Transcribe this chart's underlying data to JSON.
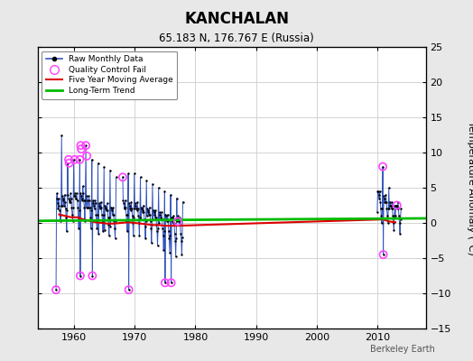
{
  "title": "KANCHALAN",
  "subtitle": "65.183 N, 176.767 E (Russia)",
  "right_ylabel": "Temperature Anomaly (°C)",
  "credit": "Berkeley Earth",
  "xlim": [
    1954,
    2018
  ],
  "ylim": [
    -15,
    25
  ],
  "yticks": [
    -15,
    -10,
    -5,
    0,
    5,
    10,
    15,
    20,
    25
  ],
  "xticks": [
    1960,
    1970,
    1980,
    1990,
    2000,
    2010
  ],
  "fig_bg": "#e8e8e8",
  "plot_bg": "#ffffff",
  "raw_color": "#3355bb",
  "dot_color": "#000000",
  "qc_color": "#ff44ff",
  "ma_color": "#dd0000",
  "trend_color": "#00bb00",
  "raw_data": {
    "seg1": {
      "x": [
        1957.0,
        1957.08,
        1957.17,
        1957.25,
        1957.33,
        1957.42,
        1957.5,
        1957.58,
        1957.67,
        1957.75,
        1957.83,
        1957.92,
        1958.0,
        1958.08,
        1958.17,
        1958.25,
        1958.33,
        1958.42,
        1958.5,
        1958.58,
        1958.67,
        1958.75,
        1958.83,
        1958.92,
        1959.0,
        1959.08,
        1959.17,
        1959.25,
        1959.33,
        1959.42,
        1959.5,
        1959.58,
        1959.67,
        1959.75,
        1959.83,
        1959.92,
        1960.0,
        1960.08,
        1960.17,
        1960.25,
        1960.33,
        1960.42,
        1960.5,
        1960.58,
        1960.67,
        1960.75,
        1960.83,
        1960.92,
        1961.0,
        1961.08,
        1961.17,
        1961.25,
        1961.33,
        1961.42,
        1961.5,
        1961.58,
        1961.67,
        1961.75,
        1961.83,
        1961.92,
        1962.0,
        1962.08,
        1962.17,
        1962.25,
        1962.33,
        1962.42,
        1962.5,
        1962.58,
        1962.67,
        1962.75,
        1962.83,
        1962.92,
        1963.0,
        1963.08,
        1963.17,
        1963.25,
        1963.33,
        1963.42,
        1963.5,
        1963.58,
        1963.67,
        1963.75,
        1963.83,
        1963.92,
        1964.0,
        1964.08,
        1964.17,
        1964.25,
        1964.33,
        1964.42,
        1964.5,
        1964.58,
        1964.67,
        1964.75,
        1964.83,
        1964.92,
        1965.0,
        1965.08,
        1965.17,
        1965.25,
        1965.33,
        1965.42,
        1965.5,
        1965.58,
        1965.67,
        1965.75,
        1965.83,
        1965.92,
        1966.0,
        1966.08,
        1966.17,
        1966.25,
        1966.33,
        1966.42,
        1966.5,
        1966.58,
        1966.67,
        1966.75,
        1966.83,
        1966.92
      ],
      "y": [
        -9.5,
        3.5,
        4.2,
        2.8,
        2.0,
        3.5,
        2.5,
        1.8,
        1.2,
        0.3,
        2.5,
        12.5,
        2.5,
        3.8,
        3.5,
        3.2,
        2.5,
        4.0,
        3.0,
        2.0,
        0.8,
        -1.2,
        1.8,
        8.5,
        4.0,
        3.5,
        3.2,
        3.0,
        3.0,
        4.2,
        3.5,
        2.2,
        1.2,
        0.2,
        2.2,
        9.0,
        3.8,
        4.2,
        3.8,
        3.5,
        3.5,
        4.2,
        3.2,
        2.2,
        0.8,
        -0.8,
        1.8,
        9.0,
        -7.5,
        4.2,
        3.8,
        3.5,
        3.2,
        5.2,
        4.2,
        3.2,
        2.2,
        0.2,
        3.2,
        11.0,
        2.2,
        3.8,
        3.2,
        2.2,
        2.2,
        3.8,
        3.2,
        2.2,
        0.8,
        -0.8,
        1.8,
        9.0,
        -7.5,
        3.2,
        2.8,
        2.5,
        2.0,
        3.2,
        2.8,
        1.2,
        0.2,
        -0.8,
        1.2,
        8.5,
        -1.5,
        2.8,
        2.5,
        2.2,
        2.0,
        3.0,
        2.2,
        1.2,
        0.2,
        -1.2,
        1.2,
        8.0,
        -1.0,
        2.5,
        2.2,
        2.0,
        1.8,
        2.8,
        1.8,
        0.8,
        -0.2,
        -1.8,
        0.8,
        7.5,
        -0.5,
        2.2,
        2.0,
        1.8,
        1.2,
        2.2,
        1.2,
        0.2,
        -0.8,
        -2.2,
        0.2,
        6.5
      ]
    },
    "seg2": {
      "x": [
        1968.0,
        1968.08,
        1968.17,
        1968.25,
        1968.33,
        1968.42,
        1968.5,
        1968.58,
        1968.67,
        1968.75,
        1968.83,
        1968.92,
        1969.0,
        1969.08,
        1969.17,
        1969.25,
        1969.33,
        1969.42,
        1969.5,
        1969.58,
        1969.67,
        1969.75,
        1969.83,
        1969.92,
        1970.0,
        1970.08,
        1970.17,
        1970.25,
        1970.33,
        1970.42,
        1970.5,
        1970.58,
        1970.67,
        1970.75,
        1970.83,
        1970.92,
        1971.0,
        1971.08,
        1971.17,
        1971.25,
        1971.33,
        1971.42,
        1971.5,
        1971.58,
        1971.67,
        1971.75,
        1971.83,
        1971.92,
        1972.0,
        1972.08,
        1972.17,
        1972.25,
        1972.33,
        1972.42,
        1972.5,
        1972.58,
        1972.67,
        1972.75,
        1972.83,
        1972.92,
        1973.0,
        1973.08,
        1973.17,
        1973.25,
        1973.33,
        1973.42,
        1973.5,
        1973.58,
        1973.67,
        1973.75,
        1973.83,
        1973.92,
        1974.0,
        1974.08,
        1974.17,
        1974.25,
        1974.33,
        1974.42,
        1974.5,
        1974.58,
        1974.67,
        1974.75,
        1974.83,
        1974.92,
        1975.0,
        1975.08,
        1975.17,
        1975.25,
        1975.33,
        1975.42,
        1975.5,
        1975.58,
        1975.67,
        1975.75,
        1975.83,
        1975.92,
        1976.0,
        1976.08,
        1976.17,
        1976.25,
        1976.33,
        1976.42,
        1976.5,
        1976.58,
        1976.67,
        1976.75,
        1976.83,
        1976.92,
        1977.0,
        1977.08,
        1977.17,
        1977.25,
        1977.33,
        1977.42,
        1977.5,
        1977.58,
        1977.67,
        1977.75,
        1977.83,
        1977.92
      ],
      "y": [
        6.5,
        3.2,
        2.8,
        2.2,
        2.0,
        3.2,
        2.2,
        1.2,
        0.2,
        -1.2,
        1.2,
        7.0,
        -9.5,
        2.8,
        2.5,
        2.0,
        1.8,
        3.0,
        2.0,
        1.0,
        0.0,
        -1.8,
        0.8,
        7.0,
        2.0,
        2.8,
        2.5,
        2.0,
        1.8,
        3.0,
        2.0,
        1.0,
        0.0,
        -1.8,
        0.8,
        6.5,
        0.5,
        2.2,
        2.0,
        1.8,
        1.5,
        2.5,
        1.5,
        0.5,
        -0.5,
        -2.2,
        0.2,
        6.0,
        1.0,
        2.0,
        1.8,
        1.5,
        1.2,
        2.2,
        1.2,
        0.2,
        -0.8,
        -2.8,
        -0.2,
        5.5,
        0.5,
        1.8,
        1.5,
        1.2,
        0.8,
        1.8,
        0.8,
        -0.2,
        -1.2,
        -3.2,
        -0.8,
        5.0,
        0.0,
        1.5,
        1.2,
        0.8,
        0.5,
        1.5,
        0.5,
        -0.8,
        -1.8,
        -3.8,
        -1.2,
        4.5,
        -8.5,
        1.2,
        1.0,
        0.5,
        0.2,
        1.2,
        0.2,
        -1.2,
        -2.2,
        -4.2,
        -1.8,
        4.0,
        -8.5,
        0.8,
        0.8,
        0.2,
        0.0,
        1.0,
        0.0,
        -1.5,
        -2.5,
        -4.8,
        -2.2,
        3.5,
        0.2,
        1.0,
        0.8,
        0.2,
        -0.2,
        0.8,
        -0.2,
        -1.5,
        -2.5,
        -4.5,
        -2.0,
        3.0
      ]
    },
    "seg3": {
      "x": [
        2010.0,
        2010.08,
        2010.17,
        2010.25,
        2010.33,
        2010.42,
        2010.5,
        2010.58,
        2010.67,
        2010.75,
        2010.83,
        2010.92,
        2011.0,
        2011.08,
        2011.17,
        2011.25,
        2011.33,
        2011.42,
        2011.5,
        2011.58,
        2011.67,
        2011.75,
        2011.83,
        2011.92,
        2012.0,
        2012.08,
        2012.17,
        2012.25,
        2012.33,
        2012.42,
        2012.5,
        2012.58,
        2012.67,
        2012.75,
        2012.83,
        2012.92,
        2013.0,
        2013.08,
        2013.17,
        2013.25,
        2013.33,
        2013.42,
        2013.5,
        2013.58,
        2013.67,
        2013.75,
        2013.83,
        2013.92
      ],
      "y": [
        1.5,
        4.5,
        4.5,
        4.0,
        3.5,
        4.5,
        3.0,
        2.0,
        1.0,
        0.0,
        2.0,
        8.0,
        -4.5,
        3.8,
        3.5,
        3.0,
        3.0,
        4.0,
        3.0,
        2.0,
        1.0,
        0.0,
        2.0,
        5.0,
        2.0,
        3.0,
        2.5,
        2.5,
        2.0,
        3.0,
        2.0,
        1.0,
        0.0,
        -1.0,
        1.0,
        2.5,
        1.0,
        2.5,
        2.5,
        2.5,
        2.0,
        3.0,
        2.0,
        1.0,
        0.0,
        -1.5,
        0.5,
        2.0
      ]
    }
  },
  "qc_fail_points": [
    [
      1957.0,
      -9.5
    ],
    [
      1959.08,
      9.0
    ],
    [
      1959.17,
      8.5
    ],
    [
      1960.08,
      9.0
    ],
    [
      1960.92,
      9.0
    ],
    [
      1961.08,
      11.0
    ],
    [
      1961.17,
      10.5
    ],
    [
      1961.92,
      11.0
    ],
    [
      1962.08,
      9.5
    ],
    [
      1961.0,
      -7.5
    ],
    [
      1963.0,
      -7.5
    ],
    [
      1968.0,
      6.5
    ],
    [
      1969.0,
      -9.5
    ],
    [
      1975.0,
      -8.5
    ],
    [
      1976.0,
      -8.5
    ],
    [
      1977.08,
      0.2
    ],
    [
      2010.92,
      8.0
    ],
    [
      2011.0,
      -4.5
    ],
    [
      2013.25,
      2.5
    ]
  ],
  "moving_avg_x": [
    1957.5,
    1958.5,
    1959.5,
    1960.5,
    1961.5,
    1962.5,
    1963.5,
    1964.5,
    1965.5,
    1966.5,
    1969.0,
    1970.0,
    1971.0,
    1972.0,
    1973.0,
    1974.0,
    1975.0,
    1976.0,
    1977.0,
    2011.0,
    2012.0,
    2013.0
  ],
  "moving_avg_y": [
    1.2,
    1.0,
    0.8,
    0.8,
    0.5,
    0.3,
    0.1,
    0.0,
    -0.1,
    -0.1,
    0.1,
    0.0,
    -0.1,
    -0.2,
    -0.3,
    -0.3,
    -0.4,
    -0.4,
    -0.4,
    0.5,
    0.2,
    0.1
  ],
  "trend_x": [
    1954,
    2018
  ],
  "trend_y": [
    0.3,
    0.65
  ]
}
